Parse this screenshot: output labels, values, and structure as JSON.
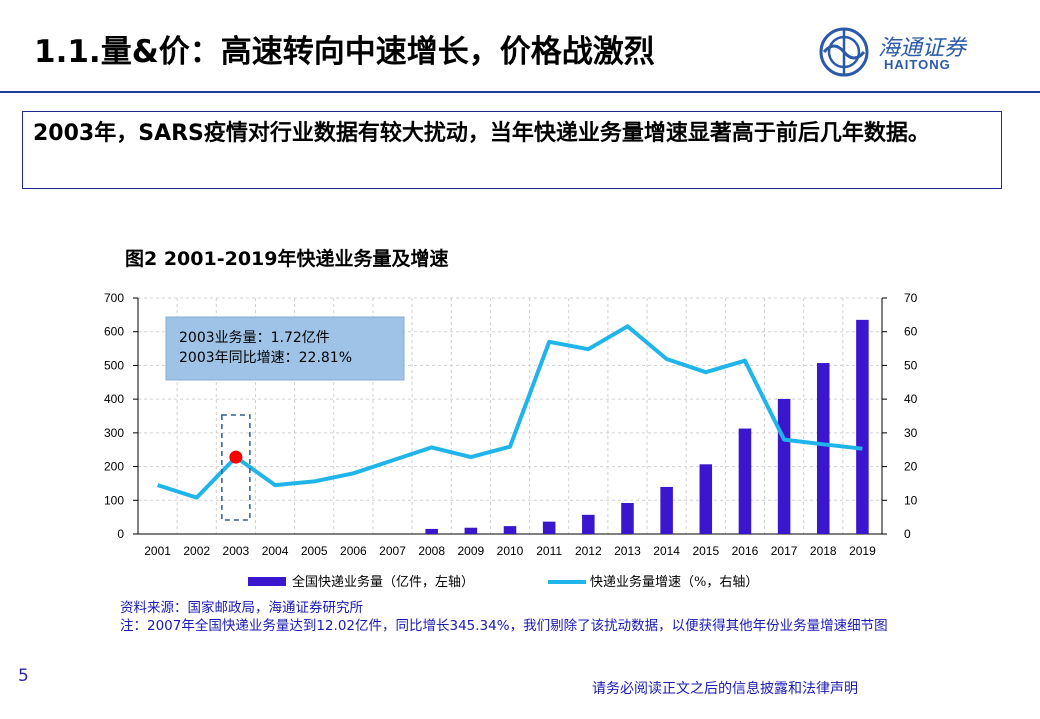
{
  "header": {
    "title": "1.1.量&价：高速转向中速增长，价格战激烈",
    "logo_cn": "海通证券",
    "logo_en": "HAITONG"
  },
  "callout": {
    "text": "2003年，SARS疫情对行业数据有较大扰动，当年快递业务量增速显著高于前后几年数据。"
  },
  "figure": {
    "title": "图2  2001-2019年快递业务量及增速"
  },
  "chart_data": {
    "type": "bar",
    "categories": [
      "2001",
      "2002",
      "2003",
      "2004",
      "2005",
      "2006",
      "2007",
      "2008",
      "2009",
      "2010",
      "2011",
      "2012",
      "2013",
      "2014",
      "2015",
      "2016",
      "2017",
      "2018",
      "2019"
    ],
    "series": [
      {
        "name": "全国快递业务量（亿件，左轴）",
        "type": "bar",
        "axis": "left",
        "values": [
          null,
          null,
          null,
          null,
          null,
          null,
          null,
          15.1,
          18.6,
          23.4,
          36.7,
          56.9,
          91.9,
          139.6,
          206.7,
          312.8,
          400.6,
          507.1,
          635.2
        ]
      },
      {
        "name": "快递业务量增速（%，右轴）",
        "type": "line",
        "axis": "right",
        "values": [
          14.5,
          10.8,
          22.81,
          14.5,
          15.6,
          18.0,
          null,
          25.7,
          22.8,
          25.9,
          57.0,
          54.8,
          61.6,
          51.9,
          48.0,
          51.4,
          28.0,
          26.6,
          25.3
        ]
      }
    ],
    "yleft_ticks": [
      "0",
      "100",
      "200",
      "300",
      "400",
      "500",
      "600",
      "700"
    ],
    "yright_ticks": [
      "0",
      "10",
      "20",
      "30",
      "40",
      "50",
      "60",
      "70"
    ],
    "ylim_left": [
      0,
      700
    ],
    "ylim_right": [
      0,
      70
    ],
    "grid": true,
    "legend_position": "bottom",
    "colors": {
      "bar": "#3a17cf",
      "line": "#1fb4ea",
      "marker": "#ff0000",
      "annotation_bg": "#9fc3e6",
      "dash_box": "#2f5d8c"
    },
    "annotation": {
      "year": "2003",
      "lines": [
        "2003业务量：1.72亿件",
        "2003年同比增速：22.81%"
      ]
    }
  },
  "source": {
    "line1": "资料来源：国家邮政局，海通证券研究所",
    "line2": "注：2007年全国快递业务量达到12.02亿件，同比增长345.34%，我们剔除了该扰动数据，以便获得其他年份业务量增速细节图"
  },
  "page_number": "5",
  "footer": "请务必阅读正文之后的信息披露和法律声明"
}
